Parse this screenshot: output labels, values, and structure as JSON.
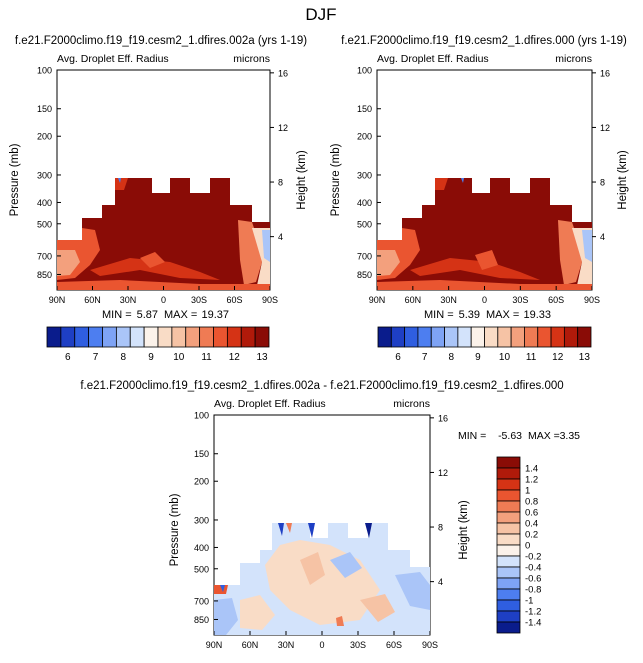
{
  "page": {
    "title": "DJF"
  },
  "chart_data": [
    {
      "type": "contour",
      "panel": "top-left",
      "title": "f.e21.F2000climo.f19_f19.cesm2_1.dfires.002a (yrs 1-19)",
      "left_label": "Avg. Droplet Eff. Radius",
      "right_label": "microns",
      "ylabel": "Pressure (mb)",
      "y2label": "Height (km)",
      "xticks": [
        "90N",
        "60N",
        "30N",
        "0",
        "30S",
        "60S",
        "90S"
      ],
      "yticks": [
        "100",
        "150",
        "200",
        "300",
        "400",
        "500",
        "700",
        "850"
      ],
      "y2ticks": [
        "16",
        "12",
        "8",
        "4"
      ],
      "min_label": "MIN =",
      "min_value": "5.87",
      "max_label": "MAX =",
      "max_value": "19.37",
      "colorbar_levels": [
        "6",
        "7",
        "8",
        "9",
        "10",
        "11",
        "12",
        "13"
      ],
      "colors": [
        "#0a1c8c",
        "#1e3fc4",
        "#2f5ee0",
        "#4d7ef0",
        "#7ea3f5",
        "#aac5f8",
        "#d3e3fb",
        "#fbf2ea",
        "#f9dcc6",
        "#f6c3a5",
        "#f3a07d",
        "#ef7b54",
        "#ea5530",
        "#d53315",
        "#b01a0a",
        "#8a0c06"
      ]
    },
    {
      "type": "contour",
      "panel": "top-right",
      "title": "f.e21.F2000climo.f19_f19.cesm2_1.dfires.000 (yrs 1-19)",
      "left_label": "Avg. Droplet Eff. Radius",
      "right_label": "microns",
      "ylabel": "Pressure (mb)",
      "y2label": "Height (km)",
      "xticks": [
        "90N",
        "60N",
        "30N",
        "0",
        "30S",
        "60S",
        "90S"
      ],
      "yticks": [
        "100",
        "150",
        "200",
        "300",
        "400",
        "500",
        "700",
        "850"
      ],
      "y2ticks": [
        "16",
        "12",
        "8",
        "4"
      ],
      "min_label": "MIN =",
      "min_value": "5.39",
      "max_label": "MAX =",
      "max_value": "19.33",
      "colorbar_levels": [
        "6",
        "7",
        "8",
        "9",
        "10",
        "11",
        "12",
        "13"
      ]
    },
    {
      "type": "contour",
      "panel": "bottom-difference",
      "title": "f.e21.F2000climo.f19_f19.cesm2_1.dfires.002a - f.e21.F2000climo.f19_f19.cesm2_1.dfires.000",
      "left_label": "Avg. Droplet Eff. Radius",
      "right_label": "microns",
      "ylabel": "Pressure (mb)",
      "y2label": "Height (km)",
      "xticks": [
        "90N",
        "60N",
        "30N",
        "0",
        "30S",
        "60S",
        "90S"
      ],
      "yticks": [
        "100",
        "150",
        "200",
        "300",
        "400",
        "500",
        "700",
        "850"
      ],
      "y2ticks": [
        "16",
        "12",
        "8",
        "4"
      ],
      "min_label": "MIN =",
      "min_value": "-5.63",
      "max_label": "MAX =",
      "max_value": "3.35",
      "colorbar_levels": [
        "1.4",
        "1.2",
        "1",
        "0.8",
        "0.6",
        "0.4",
        "0.2",
        "0",
        "-0.2",
        "-0.4",
        "-0.6",
        "-0.8",
        "-1",
        "-1.2",
        "-1.4"
      ],
      "colors": [
        "#8a0c06",
        "#b01a0a",
        "#d53315",
        "#ea5530",
        "#ef7b54",
        "#f3a07d",
        "#f6c3a5",
        "#f9dcc6",
        "#fbf2ea",
        "#d3e3fb",
        "#aac5f8",
        "#7ea3f5",
        "#4d7ef0",
        "#2f5ee0",
        "#1e3fc4",
        "#0a1c8c"
      ]
    }
  ]
}
